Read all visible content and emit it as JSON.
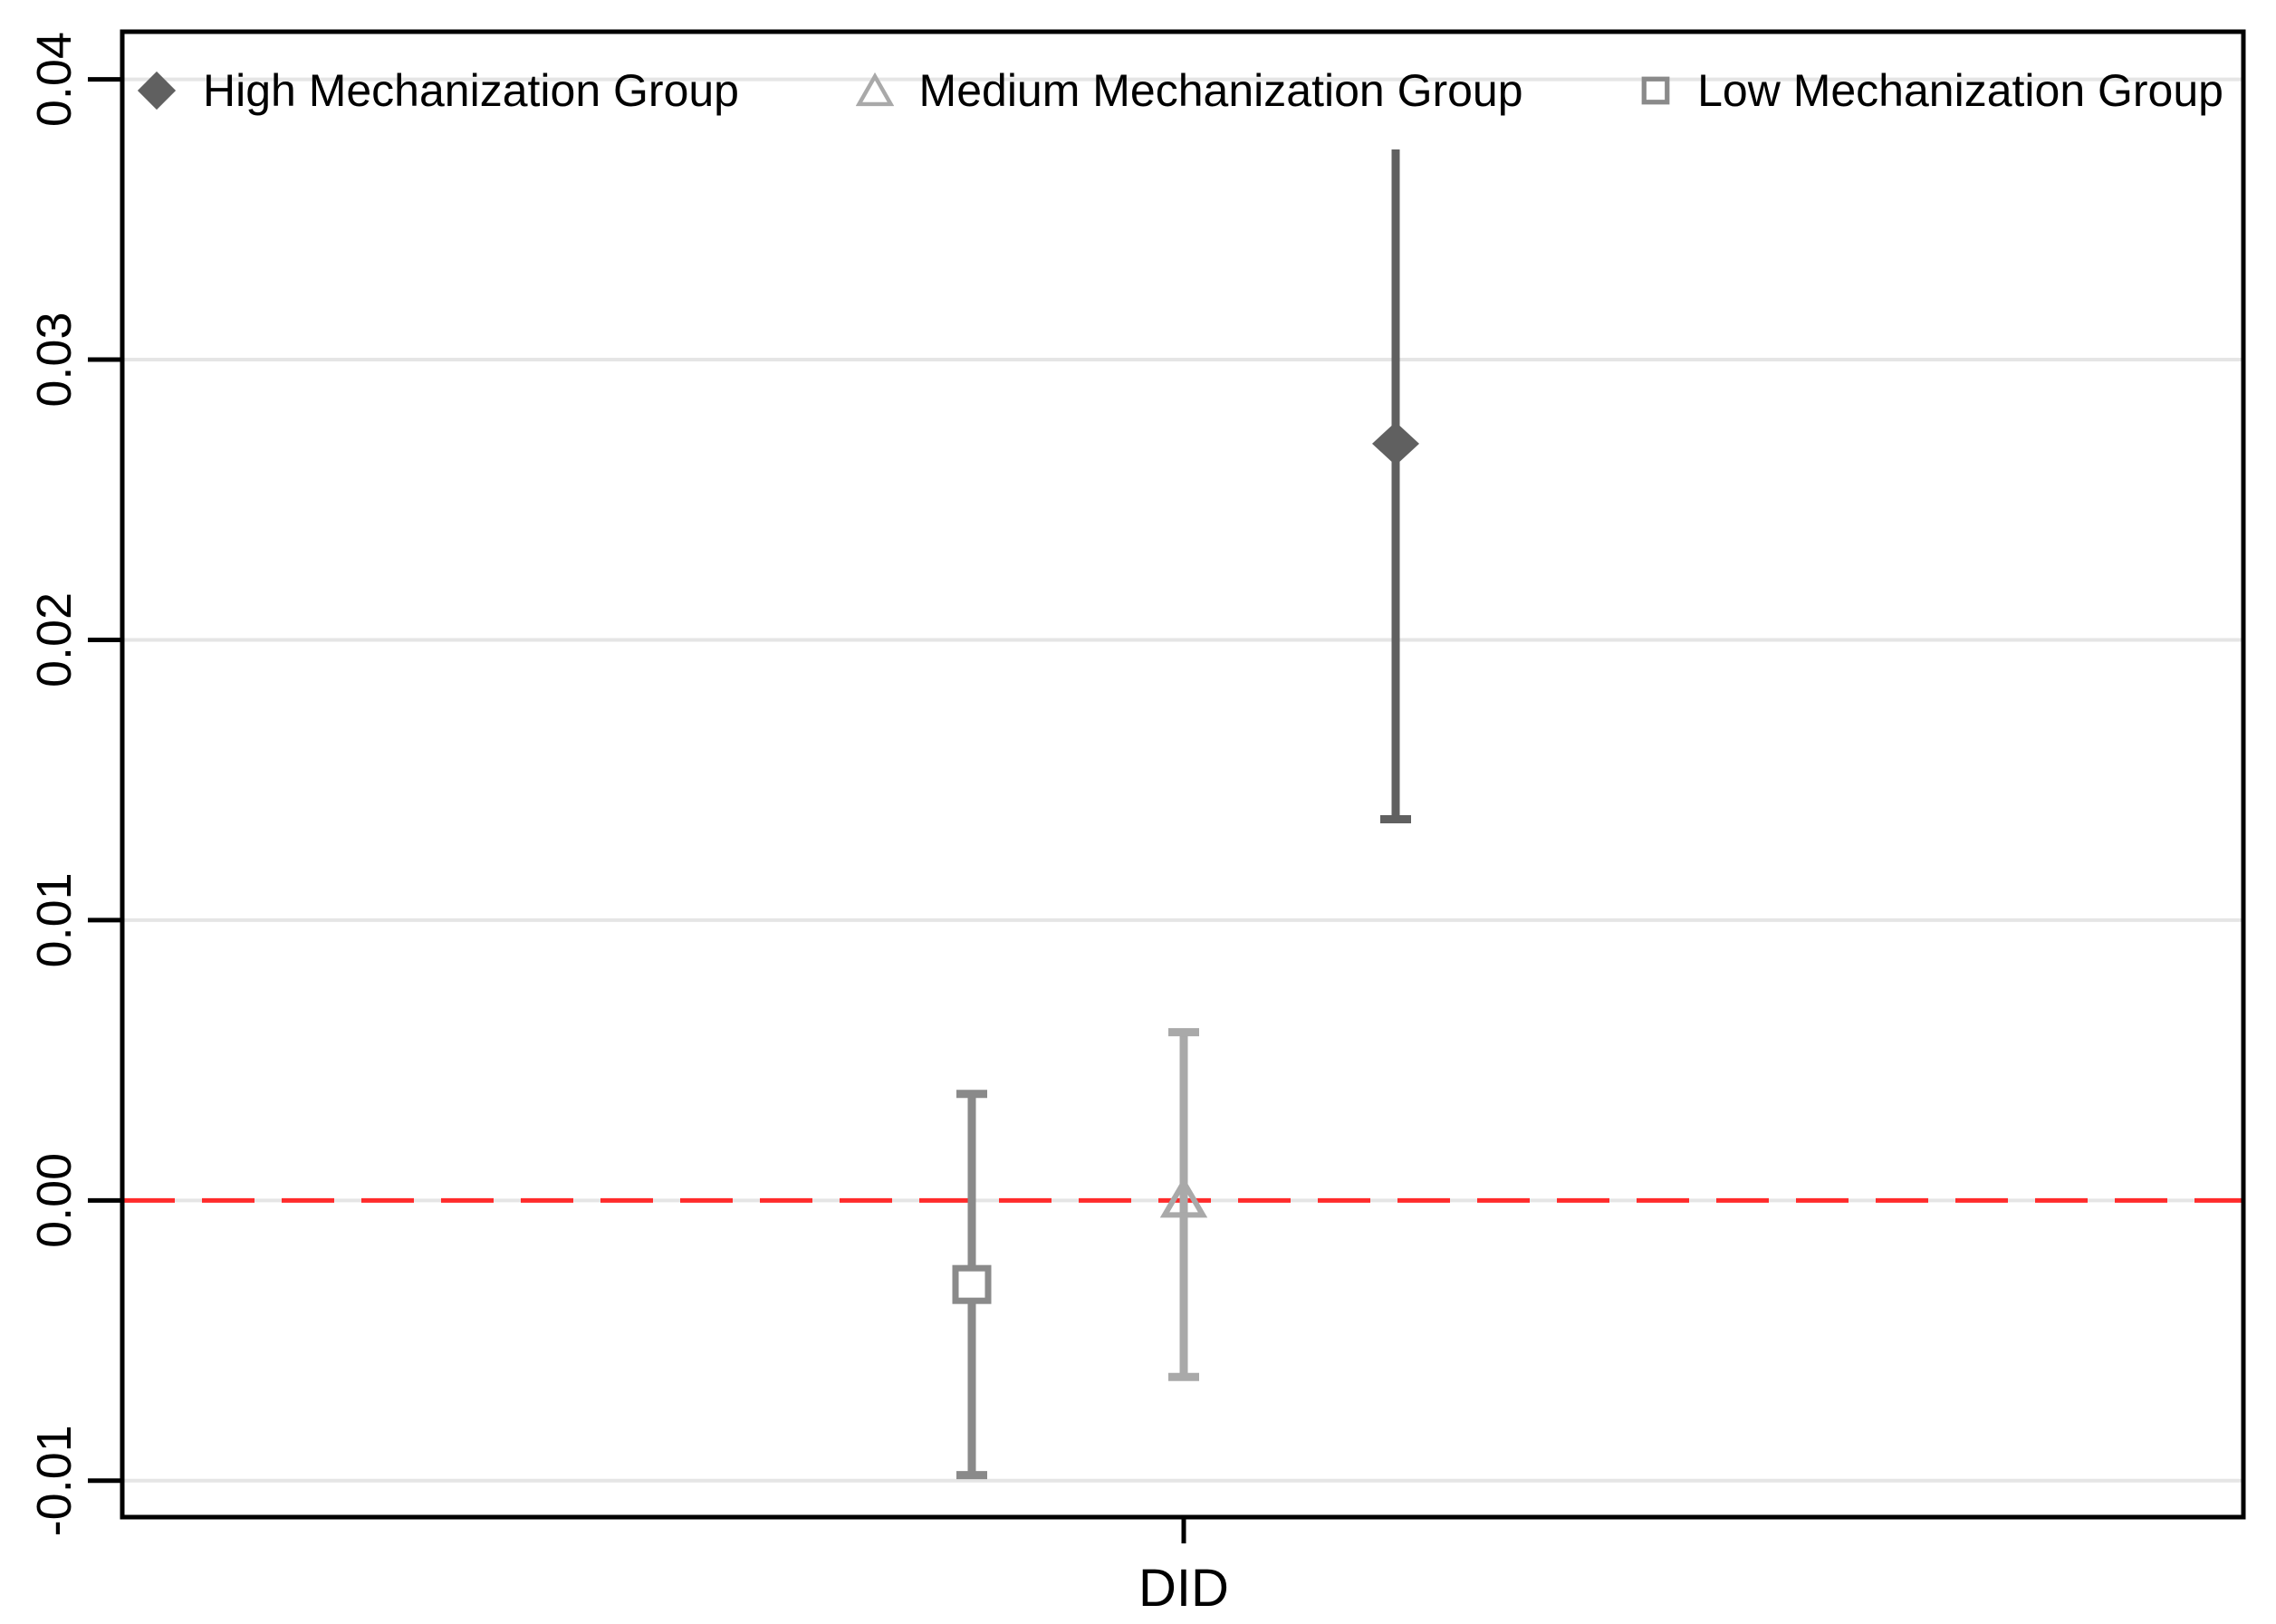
{
  "legend": {
    "items": [
      {
        "label": "High Mechanization Group",
        "marker": "diamond-filled",
        "color": "#606060"
      },
      {
        "label": "Medium Mechanization Group",
        "marker": "triangle-outline",
        "color": "#a9a9a9"
      },
      {
        "label": "Low Mechanization Group",
        "marker": "square-outline",
        "color": "#8a8a8a"
      }
    ]
  },
  "chart_data": {
    "type": "scatter",
    "subtype": "coefficient-plot-with-error-bars",
    "title": "",
    "xlabel": "DID",
    "ylabel": "",
    "x_category": "DID",
    "ylim": [
      -0.0113,
      0.0417
    ],
    "yticks": [
      -0.01,
      0,
      0.01,
      0.02,
      0.03,
      0.04
    ],
    "ytick_labels": [
      "-0.01",
      "0.00",
      "0.01",
      "0.02",
      "0.03",
      "0.04"
    ],
    "grid": "horizontal",
    "legend_position": "top-inside",
    "zero_line": {
      "value": 0,
      "style": "dashed",
      "color": "#ff2b2b"
    },
    "series": [
      {
        "name": "Low Mechanization Group",
        "marker": "square-outline",
        "color": "#8a8a8a",
        "estimate": -0.003,
        "ci_low": -0.0098,
        "ci_high": 0.0038,
        "x_offset": -1,
        "caps": [
          "top",
          "bottom"
        ]
      },
      {
        "name": "Medium Mechanization Group",
        "marker": "triangle-outline",
        "color": "#a9a9a9",
        "estimate": 0.0,
        "ci_low": -0.0063,
        "ci_high": 0.006,
        "x_offset": 0,
        "caps": [
          "top",
          "bottom"
        ]
      },
      {
        "name": "High Mechanization Group",
        "marker": "diamond-filled",
        "color": "#606060",
        "estimate": 0.027,
        "ci_low": 0.0136,
        "ci_high": 0.0375,
        "x_offset": 1,
        "caps": [
          "bottom"
        ]
      }
    ],
    "style": {
      "frame_color": "#000000",
      "grid_color": "#e5e5e5",
      "text_color": "#000000",
      "background": "#ffffff"
    }
  }
}
